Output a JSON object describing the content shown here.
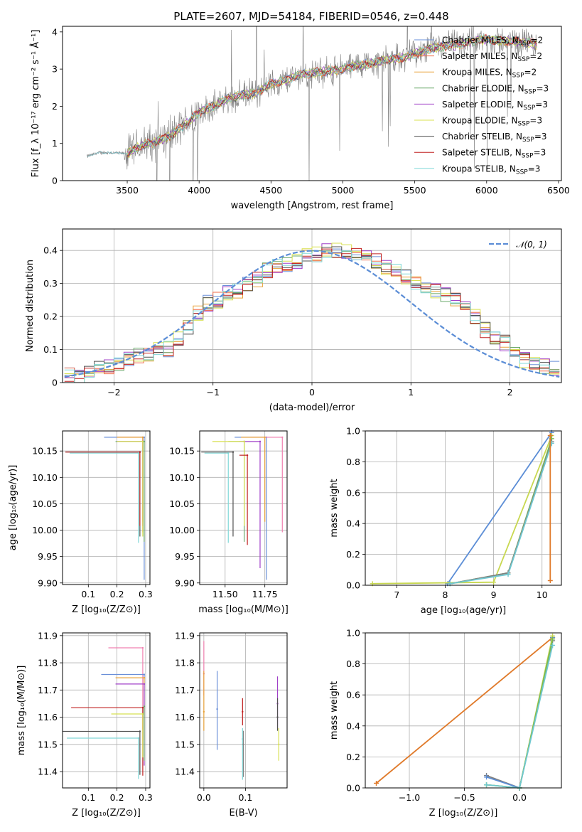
{
  "figure": {
    "title": "PLATE=2607, MJD=54184, FIBERID=0546, z=0.448"
  },
  "colors": {
    "chabrier_miles": "#6a8fd8",
    "salpeter_miles": "#f06b4a",
    "kroupa_miles": "#e8a33a",
    "chabrier_elodie": "#6aa86a",
    "salpeter_elodie": "#a040c8",
    "kroupa_elodie": "#d8e050",
    "chabrier_stelib": "#505050",
    "salpeter_stelib": "#c02020",
    "kroupa_stelib": "#80d8d8",
    "weight_blue": "#5b8dd6",
    "weight_orange": "#e07a2a",
    "weight_yellow": "#c8d850",
    "weight_green": "#7ab850",
    "weight_cyan": "#70c8d0",
    "data_grey": "#808080",
    "pink": "#f080b0"
  },
  "chart_data": [
    {
      "id": "spectrum",
      "type": "line",
      "title": "PLATE=2607, MJD=54184, FIBERID=0546, z=0.448",
      "xlabel": "wavelength [Angstrom, rest frame]",
      "ylabel": "Flux [f_λ 10⁻¹⁷ erg cm⁻² s⁻¹ Å⁻¹]",
      "xlim": [
        3050,
        6520
      ],
      "ylim": [
        0,
        4.15
      ],
      "xticks": [
        3500,
        4000,
        4500,
        5000,
        5500,
        6000,
        6500
      ],
      "yticks": [
        0,
        1,
        2,
        3,
        4
      ],
      "grid": false,
      "legend_position": "top-right",
      "legend": [
        {
          "label": "Chabrier MILES, N",
          "sub": "SSP",
          "tail": "=2",
          "color": "#6a8fd8"
        },
        {
          "label": "Salpeter MILES, N",
          "sub": "SSP",
          "tail": "=2",
          "color": "#f06b4a"
        },
        {
          "label": "Kroupa MILES, N",
          "sub": "SSP",
          "tail": "=2",
          "color": "#e8a33a"
        },
        {
          "label": "Chabrier ELODIE, N",
          "sub": "SSP",
          "tail": "=3",
          "color": "#6aa86a"
        },
        {
          "label": "Salpeter ELODIE, N",
          "sub": "SSP",
          "tail": "=3",
          "color": "#a040c8"
        },
        {
          "label": "Kroupa ELODIE, N",
          "sub": "SSP",
          "tail": "=3",
          "color": "#d8e050"
        },
        {
          "label": "Chabrier STELIB, N",
          "sub": "SSP",
          "tail": "=3",
          "color": "#505050"
        },
        {
          "label": "Salpeter STELIB, N",
          "sub": "SSP",
          "tail": "=3",
          "color": "#c02020"
        },
        {
          "label": "Kroupa STELIB, N",
          "sub": "SSP",
          "tail": "=3",
          "color": "#80d8d8"
        }
      ],
      "model_trend": {
        "x": [
          3220,
          3300,
          3400,
          3500,
          3600,
          3700,
          3800,
          3900,
          4000,
          4100,
          4200,
          4300,
          4400,
          4500,
          4600,
          4700,
          4800,
          4900,
          5000,
          5100,
          5200,
          5300,
          5400,
          5500,
          5600,
          5700,
          5800,
          5900,
          6000,
          6100,
          6200,
          6300,
          6350
        ],
        "y": [
          0.65,
          0.75,
          0.75,
          0.72,
          0.95,
          1.05,
          1.2,
          1.5,
          1.85,
          2.0,
          2.2,
          2.3,
          2.35,
          2.6,
          2.7,
          2.85,
          2.9,
          2.95,
          3.0,
          3.1,
          3.15,
          3.25,
          3.3,
          3.4,
          3.55,
          3.6,
          3.65,
          3.75,
          3.8,
          3.75,
          3.75,
          3.7,
          3.65
        ]
      }
    },
    {
      "id": "residuals",
      "type": "histogram",
      "xlabel": "(data-model)/error",
      "ylabel": "Normed distribution",
      "xlim": [
        -2.52,
        2.52
      ],
      "ylim": [
        0,
        0.465
      ],
      "xticks": [
        -2,
        -1,
        0,
        1,
        2
      ],
      "xtick_labels": [
        "−2",
        "−1",
        "0",
        "1",
        "2"
      ],
      "yticks": [
        0.0,
        0.1,
        0.2,
        0.3,
        0.4
      ],
      "grid": true,
      "legend_position": "top-right",
      "legend": [
        {
          "label": "𝒩(0, 1)",
          "color": "#5b8dd6",
          "dashed": true
        }
      ],
      "bins_start": -2.5,
      "bin_width": 0.1,
      "histogram_values": [
        0.02,
        0.02,
        0.04,
        0.04,
        0.05,
        0.06,
        0.07,
        0.08,
        0.09,
        0.1,
        0.1,
        0.13,
        0.17,
        0.21,
        0.24,
        0.25,
        0.27,
        0.28,
        0.3,
        0.31,
        0.34,
        0.35,
        0.36,
        0.37,
        0.39,
        0.39,
        0.4,
        0.4,
        0.4,
        0.39,
        0.38,
        0.37,
        0.35,
        0.34,
        0.32,
        0.3,
        0.29,
        0.28,
        0.27,
        0.25,
        0.23,
        0.2,
        0.16,
        0.14,
        0.12,
        0.1,
        0.07,
        0.06,
        0.05,
        0.04
      ]
    },
    {
      "id": "age_vs_Z",
      "type": "errorbar",
      "xlabel": "Z [log₁₀(Z/Z⊙)]",
      "ylabel": "age  [log₁₀(age/yr)]",
      "xlim": [
        0.01,
        0.315
      ],
      "ylim": [
        9.897,
        10.188
      ],
      "xticks": [
        0.1,
        0.2,
        0.3
      ],
      "yticks": [
        9.9,
        9.95,
        10.0,
        10.05,
        10.1,
        10.15
      ],
      "ytick_labels": [
        "9.90",
        "9.95",
        "10.00",
        "10.05",
        "10.10",
        "10.15"
      ],
      "grid": true,
      "points": [
        {
          "x": 0.295,
          "y": 10.176,
          "xerr": [
            0.14,
            0.0
          ],
          "yerr": [
            0.27,
            0.0
          ],
          "color": "#6a8fd8"
        },
        {
          "x": 0.29,
          "y": 10.176,
          "xerr": [
            0.09,
            0.0
          ],
          "yerr": [
            0.18,
            0.0
          ],
          "color": "#f06b4a"
        },
        {
          "x": 0.29,
          "y": 10.176,
          "xerr": [
            0.09,
            0.0
          ],
          "yerr": [
            0.16,
            0.0
          ],
          "color": "#e8a33a"
        },
        {
          "x": 0.295,
          "y": 10.168,
          "xerr": [
            0.1,
            0.0
          ],
          "yerr": [
            0.19,
            0.0
          ],
          "color": "#6aa86a"
        },
        {
          "x": 0.29,
          "y": 10.168,
          "xerr": [
            0.09,
            0.0
          ],
          "yerr": [
            0.16,
            0.0
          ],
          "color": "#a040c8"
        },
        {
          "x": 0.29,
          "y": 10.168,
          "xerr": [
            0.09,
            0.0
          ],
          "yerr": [
            0.18,
            0.0
          ],
          "color": "#d8e050"
        },
        {
          "x": 0.28,
          "y": 10.148,
          "xerr": [
            0.26,
            0.0
          ],
          "yerr": [
            0.16,
            0.0
          ],
          "color": "#505050"
        },
        {
          "x": 0.28,
          "y": 10.148,
          "xerr": [
            0.26,
            0.0
          ],
          "yerr": [
            0.14,
            0.0
          ],
          "color": "#c02020"
        },
        {
          "x": 0.275,
          "y": 10.146,
          "xerr": [
            0.24,
            0.0
          ],
          "yerr": [
            0.17,
            0.0
          ],
          "color": "#80d8d8"
        }
      ]
    },
    {
      "id": "age_vs_mass",
      "type": "errorbar",
      "xlabel": "mass [log₁₀(M/M⊙)]",
      "xlim": [
        11.34,
        11.89
      ],
      "ylim": [
        9.897,
        10.188
      ],
      "xticks": [
        11.5,
        11.75
      ],
      "xtick_labels": [
        "11.50",
        "11.75"
      ],
      "yticks": [
        9.9,
        9.95,
        10.0,
        10.05,
        10.1,
        10.15
      ],
      "ytick_labels": [
        "9.90",
        "9.95",
        "10.00",
        "10.05",
        "10.10",
        "10.15"
      ],
      "grid": true,
      "points": [
        {
          "x": 11.76,
          "y": 10.176,
          "xerr": [
            0.2,
            0.0
          ],
          "yerr": [
            0.27,
            0.0
          ],
          "color": "#6a8fd8"
        },
        {
          "x": 11.86,
          "y": 10.176,
          "xerr": [
            0.2,
            0.0
          ],
          "yerr": [
            0.18,
            0.0
          ],
          "color": "#f080b0"
        },
        {
          "x": 11.75,
          "y": 10.176,
          "xerr": [
            0.15,
            0.0
          ],
          "yerr": [
            0.16,
            0.0
          ],
          "color": "#e8a33a"
        },
        {
          "x": 11.62,
          "y": 10.168,
          "xerr": [
            0.1,
            0.0
          ],
          "yerr": [
            0.19,
            0.0
          ],
          "color": "#6aa86a"
        },
        {
          "x": 11.72,
          "y": 10.168,
          "xerr": [
            0.13,
            0.0
          ],
          "yerr": [
            0.24,
            0.0
          ],
          "color": "#a040c8"
        },
        {
          "x": 11.62,
          "y": 10.168,
          "xerr": [
            0.2,
            0.0
          ],
          "yerr": [
            0.16,
            0.0
          ],
          "color": "#d8e050"
        },
        {
          "x": 11.55,
          "y": 10.148,
          "xerr": [
            0.2,
            0.0
          ],
          "yerr": [
            0.16,
            0.0
          ],
          "color": "#505050"
        },
        {
          "x": 11.64,
          "y": 10.142,
          "xerr": [
            0.05,
            0.0
          ],
          "yerr": [
            0.17,
            0.0
          ],
          "color": "#c02020"
        },
        {
          "x": 11.52,
          "y": 10.146,
          "xerr": [
            0.15,
            0.0
          ],
          "yerr": [
            0.17,
            0.0
          ],
          "color": "#80d8d8"
        }
      ]
    },
    {
      "id": "mass_weight_vs_age",
      "type": "line",
      "xlabel": "age  [log₁₀(age/yr)]",
      "ylabel": "mass weight",
      "xlim": [
        6.35,
        10.4
      ],
      "ylim": [
        0,
        1.0
      ],
      "xticks": [
        7,
        8,
        9,
        10
      ],
      "yticks": [
        0.0,
        0.2,
        0.4,
        0.6,
        0.8,
        1.0
      ],
      "ytick_labels": [
        "0.0",
        "0.2",
        "0.4",
        "0.6",
        "0.8",
        "1.0"
      ],
      "grid": true,
      "series": [
        {
          "color": "#5b8dd6",
          "x": [
            8.05,
            10.2
          ],
          "y": [
            0.01,
            0.99
          ]
        },
        {
          "color": "#c8d850",
          "x": [
            6.5,
            9.0,
            10.2
          ],
          "y": [
            0.01,
            0.02,
            0.97
          ]
        },
        {
          "color": "#7ab850",
          "x": [
            8.1,
            9.3,
            10.2
          ],
          "y": [
            0.01,
            0.08,
            0.95
          ]
        },
        {
          "color": "#808080",
          "x": [
            8.1,
            9.3,
            10.2
          ],
          "y": [
            0.01,
            0.08,
            0.93
          ]
        },
        {
          "color": "#70c8d0",
          "x": [
            8.1,
            9.3,
            10.2
          ],
          "y": [
            0.01,
            0.07,
            0.92
          ]
        },
        {
          "color": "#e07a2a",
          "x": [
            10.17,
            10.17
          ],
          "y": [
            0.03,
            0.97
          ]
        }
      ]
    },
    {
      "id": "mass_vs_Z",
      "type": "errorbar",
      "xlabel": "Z [log₁₀(Z/Z⊙)]",
      "ylabel": "mass [log₁₀(M/M⊙)]",
      "xlim": [
        0.01,
        0.315
      ],
      "ylim": [
        11.34,
        11.91
      ],
      "xticks": [
        0.1,
        0.2,
        0.3
      ],
      "yticks": [
        11.4,
        11.5,
        11.6,
        11.7,
        11.8,
        11.9
      ],
      "grid": true,
      "points": [
        {
          "x": 0.29,
          "y": 11.855,
          "xerr": [
            0.12,
            0.0
          ],
          "yerr": [
            0.3,
            0.0
          ],
          "color": "#f080b0"
        },
        {
          "x": 0.295,
          "y": 11.757,
          "xerr": [
            0.15,
            0.0
          ],
          "yerr": [
            0.3,
            0.0
          ],
          "color": "#6a8fd8"
        },
        {
          "x": 0.295,
          "y": 11.745,
          "xerr": [
            0.1,
            0.0
          ],
          "yerr": [
            0.23,
            0.0
          ],
          "color": "#e8a33a"
        },
        {
          "x": 0.295,
          "y": 11.722,
          "xerr": [
            0.1,
            0.0
          ],
          "yerr": [
            0.3,
            0.0
          ],
          "color": "#a040c8"
        },
        {
          "x": 0.29,
          "y": 11.635,
          "xerr": [
            0.25,
            0.0
          ],
          "yerr": [
            0.25,
            0.0
          ],
          "color": "#c02020"
        },
        {
          "x": 0.29,
          "y": 11.612,
          "xerr": [
            0.11,
            0.0
          ],
          "yerr": [
            0.16,
            0.0
          ],
          "color": "#d8e050"
        },
        {
          "x": 0.28,
          "y": 11.548,
          "xerr": [
            0.27,
            0.0
          ],
          "yerr": [
            0.16,
            0.0
          ],
          "color": "#505050"
        },
        {
          "x": 0.275,
          "y": 11.523,
          "xerr": [
            0.25,
            0.0
          ],
          "yerr": [
            0.15,
            0.0
          ],
          "color": "#80d8d8"
        },
        {
          "x": 0.295,
          "y": 11.64,
          "xerr": [
            0.0,
            0.0
          ],
          "yerr": [
            0.2,
            0.0
          ],
          "color": "#6aa86a"
        }
      ]
    },
    {
      "id": "mass_vs_ebv",
      "type": "errorbar",
      "xlabel": "E(B-V)",
      "xlim": [
        -0.01,
        0.2
      ],
      "ylim": [
        11.34,
        11.91
      ],
      "xticks": [
        0.0,
        0.1
      ],
      "xtick_labels": [
        "0.0",
        "0.1"
      ],
      "yticks": [
        11.4,
        11.5,
        11.6,
        11.7,
        11.8,
        11.9
      ],
      "grid": true,
      "points": [
        {
          "x": 0.0,
          "y": 11.76,
          "yerr": [
            0.08,
            0.12
          ],
          "color": "#f080b0"
        },
        {
          "x": 0.0,
          "y": 11.62,
          "yerr": [
            0.07,
            0.15
          ],
          "color": "#e8a33a"
        },
        {
          "x": 0.032,
          "y": 11.63,
          "yerr": [
            0.15,
            0.14
          ],
          "color": "#6a8fd8"
        },
        {
          "x": 0.093,
          "y": 11.62,
          "yerr": [
            0.05,
            0.05
          ],
          "color": "#c02020"
        },
        {
          "x": 0.093,
          "y": 11.52,
          "yerr": [
            0.15,
            0.04
          ],
          "color": "#80d8d8"
        },
        {
          "x": 0.095,
          "y": 11.5,
          "yerr": [
            0.12,
            0.05
          ],
          "color": "#808080"
        },
        {
          "x": 0.177,
          "y": 11.65,
          "yerr": [
            0.09,
            0.1
          ],
          "color": "#a040c8"
        },
        {
          "x": 0.177,
          "y": 11.6,
          "yerr": [
            0.05,
            0.07
          ],
          "color": "#505050"
        },
        {
          "x": 0.18,
          "y": 11.5,
          "yerr": [
            0.06,
            0.06
          ],
          "color": "#d8e050"
        }
      ]
    },
    {
      "id": "mass_weight_vs_Z",
      "type": "line",
      "xlabel": "Z [log₁₀(Z/Z⊙)]",
      "ylabel": "mass weight",
      "xlim": [
        -1.4,
        0.38
      ],
      "ylim": [
        0,
        1.0
      ],
      "xticks": [
        -1.0,
        -0.5,
        0.0
      ],
      "xtick_labels": [
        "−1.0",
        "−0.5",
        "0.0"
      ],
      "yticks": [
        0.0,
        0.2,
        0.4,
        0.6,
        0.8,
        1.0
      ],
      "ytick_labels": [
        "0.0",
        "0.2",
        "0.4",
        "0.6",
        "0.8",
        "1.0"
      ],
      "grid": true,
      "series": [
        {
          "color": "#e07a2a",
          "x": [
            -1.3,
            0.3
          ],
          "y": [
            0.03,
            0.97
          ]
        },
        {
          "color": "#808080",
          "x": [
            -0.3,
            0.0,
            0.3
          ],
          "y": [
            0.08,
            0.0,
            0.95
          ]
        },
        {
          "color": "#5b8dd6",
          "x": [
            -0.3,
            0.0,
            0.3
          ],
          "y": [
            0.07,
            0.0,
            0.97
          ]
        },
        {
          "color": "#c8d850",
          "x": [
            -0.3,
            0.0,
            0.3
          ],
          "y": [
            0.02,
            0.0,
            0.98
          ]
        },
        {
          "color": "#7ab850",
          "x": [
            -0.3,
            0.0,
            0.3
          ],
          "y": [
            0.02,
            0.0,
            0.96
          ]
        },
        {
          "color": "#70c8d0",
          "x": [
            -0.3,
            0.0,
            0.3
          ],
          "y": [
            0.02,
            0.0,
            0.92
          ]
        }
      ]
    }
  ]
}
